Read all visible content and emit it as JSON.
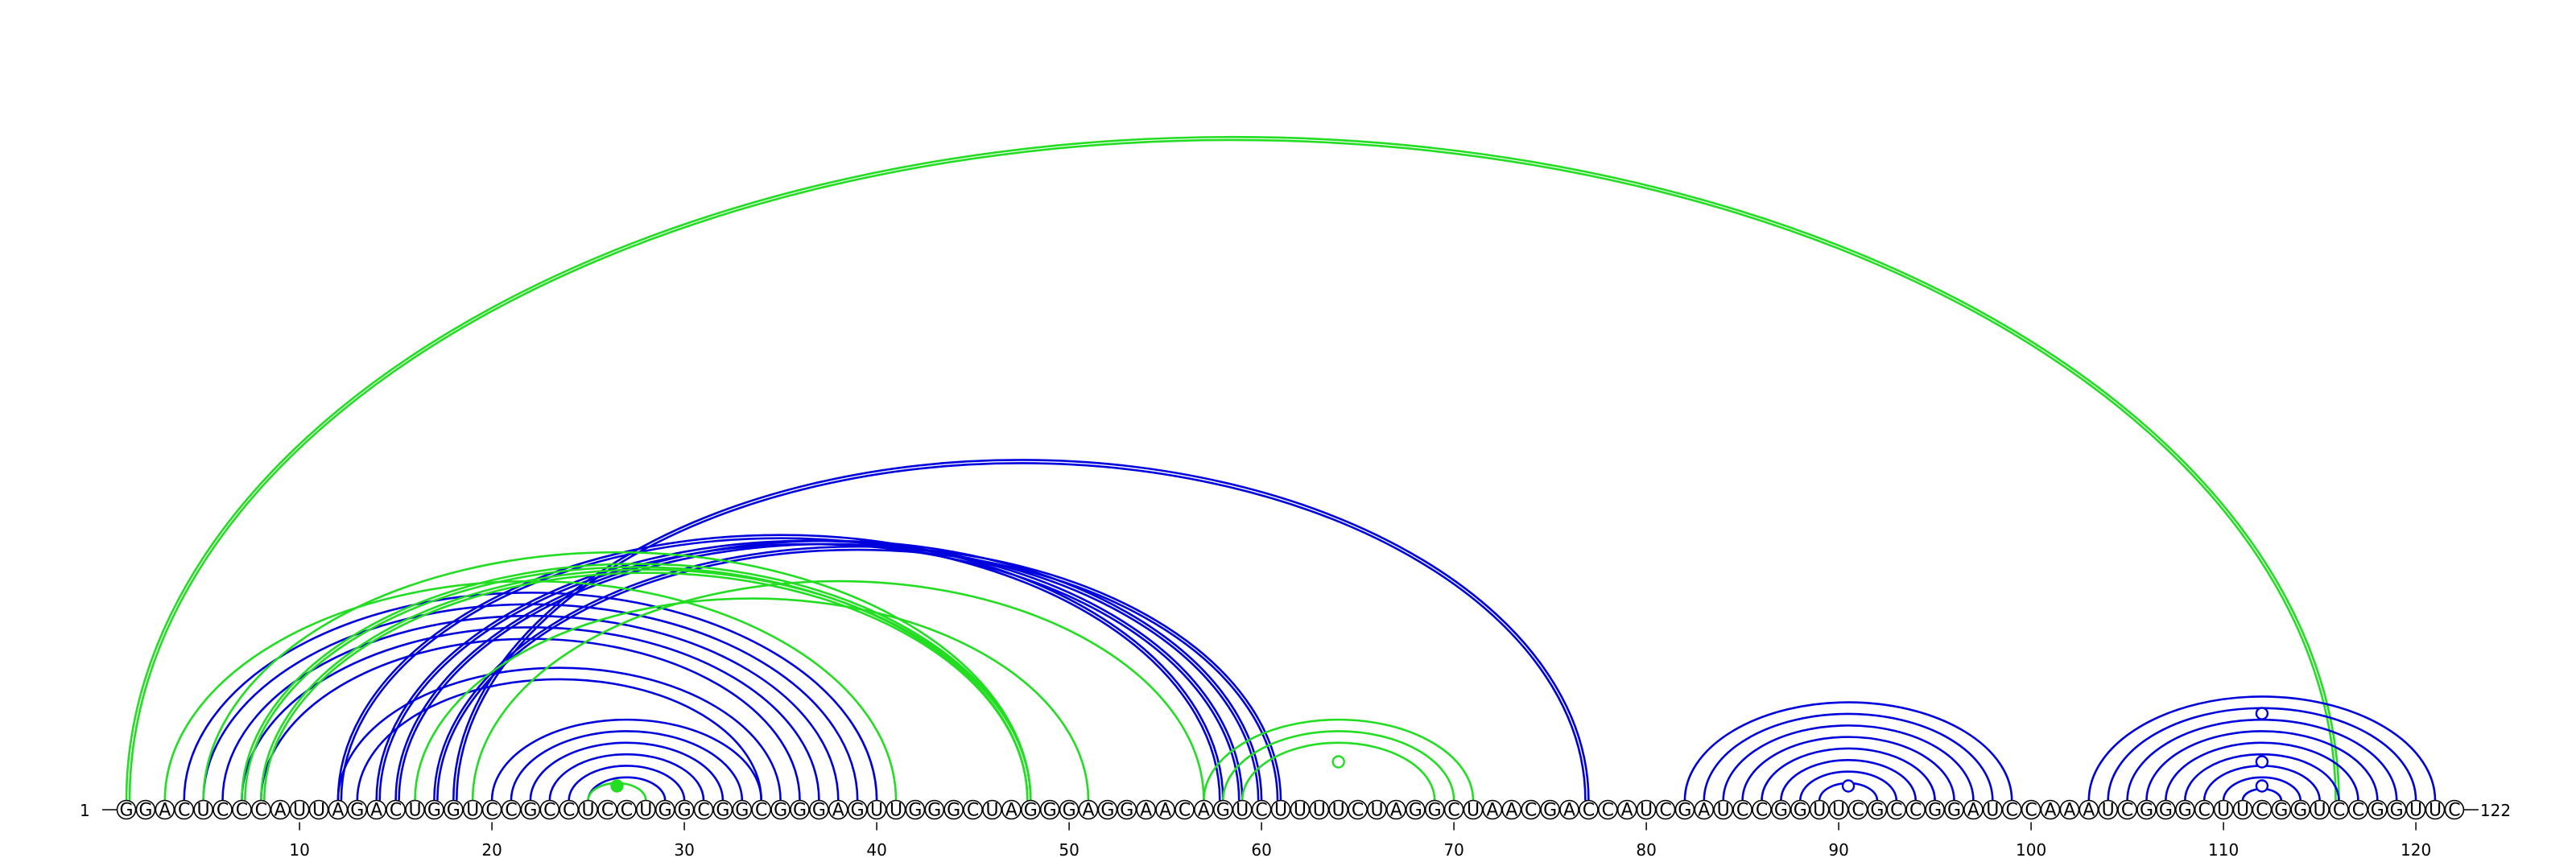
{
  "sequence": "GGACUCCCAUUAGACUGGUCCGCCUCCUGGCGGCGGGAGUUGGGCUAGGGAGGAACAGUCUUUUCUAGGCUAACGACCAUCGAUCCGGUUCGCCGGAUCCAAAUCGGGCUUCGGUCCGGUUC",
  "start_label": "1",
  "end_label": "122",
  "ticks": [
    {
      "pos": 10,
      "label": "10"
    },
    {
      "pos": 20,
      "label": "20"
    },
    {
      "pos": 30,
      "label": "30"
    },
    {
      "pos": 40,
      "label": "40"
    },
    {
      "pos": 50,
      "label": "50"
    },
    {
      "pos": 60,
      "label": "60"
    },
    {
      "pos": 70,
      "label": "70"
    },
    {
      "pos": 80,
      "label": "80"
    },
    {
      "pos": 90,
      "label": "90"
    },
    {
      "pos": 100,
      "label": "100"
    },
    {
      "pos": 110,
      "label": "110"
    },
    {
      "pos": 120,
      "label": "120"
    }
  ],
  "colors": {
    "blue": "#0000dd",
    "green": "#22dd22"
  },
  "arcs": [
    {
      "i": 1,
      "j": 116,
      "color": "green",
      "double": true
    },
    {
      "i": 4,
      "j": 40,
      "color": "blue"
    },
    {
      "i": 5,
      "j": 39,
      "color": "blue"
    },
    {
      "i": 6,
      "j": 38,
      "color": "blue"
    },
    {
      "i": 7,
      "j": 37,
      "color": "blue"
    },
    {
      "i": 8,
      "j": 36,
      "color": "blue"
    },
    {
      "i": 12,
      "j": 35,
      "color": "blue"
    },
    {
      "i": 13,
      "j": 34,
      "color": "blue"
    },
    {
      "i": 12,
      "j": 58,
      "color": "blue",
      "double": true
    },
    {
      "i": 14,
      "j": 59,
      "color": "blue",
      "double": true
    },
    {
      "i": 15,
      "j": 60,
      "color": "blue",
      "double": true
    },
    {
      "i": 17,
      "j": 61,
      "color": "blue",
      "double": true
    },
    {
      "i": 18,
      "j": 77,
      "color": "blue",
      "double": true
    },
    {
      "i": 20,
      "j": 34,
      "color": "blue"
    },
    {
      "i": 21,
      "j": 33,
      "color": "blue"
    },
    {
      "i": 22,
      "j": 32,
      "color": "blue"
    },
    {
      "i": 23,
      "j": 31,
      "color": "blue"
    },
    {
      "i": 24,
      "j": 30,
      "color": "blue"
    },
    {
      "i": 25,
      "j": 29,
      "color": "blue"
    },
    {
      "i": 3,
      "j": 41,
      "color": "green"
    },
    {
      "i": 5,
      "j": 48,
      "color": "green"
    },
    {
      "i": 7,
      "j": 48,
      "color": "green",
      "double": true
    },
    {
      "i": 8,
      "j": 48,
      "color": "green",
      "double": true
    },
    {
      "i": 16,
      "j": 51,
      "color": "green"
    },
    {
      "i": 19,
      "j": 57,
      "color": "green"
    },
    {
      "i": 25,
      "j": 28,
      "color": "green"
    },
    {
      "i": 57,
      "j": 71,
      "color": "green"
    },
    {
      "i": 58,
      "j": 70,
      "color": "green"
    },
    {
      "i": 59,
      "j": 69,
      "color": "green"
    },
    {
      "i": 82,
      "j": 99,
      "color": "blue"
    },
    {
      "i": 83,
      "j": 98,
      "color": "blue"
    },
    {
      "i": 84,
      "j": 97,
      "color": "blue"
    },
    {
      "i": 85,
      "j": 96,
      "color": "blue"
    },
    {
      "i": 86,
      "j": 95,
      "color": "blue"
    },
    {
      "i": 87,
      "j": 94,
      "color": "blue"
    },
    {
      "i": 88,
      "j": 93,
      "color": "blue"
    },
    {
      "i": 89,
      "j": 92,
      "color": "blue"
    },
    {
      "i": 103,
      "j": 121,
      "color": "blue"
    },
    {
      "i": 104,
      "j": 120,
      "color": "blue"
    },
    {
      "i": 105,
      "j": 119,
      "color": "blue"
    },
    {
      "i": 106,
      "j": 118,
      "color": "blue"
    },
    {
      "i": 107,
      "j": 117,
      "color": "blue"
    },
    {
      "i": 108,
      "j": 116,
      "color": "blue"
    },
    {
      "i": 109,
      "j": 115,
      "color": "blue"
    },
    {
      "i": 110,
      "j": 114,
      "color": "blue"
    },
    {
      "i": 111,
      "j": 113,
      "color": "blue"
    }
  ],
  "markers": [
    {
      "pos": 26.5,
      "height": 0,
      "style": "filled",
      "color": "green"
    },
    {
      "pos": 64,
      "height": 1,
      "style": "open",
      "color": "green"
    },
    {
      "pos": 90.5,
      "height": 0,
      "style": "open",
      "color": "blue"
    },
    {
      "pos": 112,
      "height": 0,
      "style": "open",
      "color": "blue"
    },
    {
      "pos": 112,
      "height": 1,
      "style": "open",
      "color": "blue"
    },
    {
      "pos": 112,
      "height": 3,
      "style": "open",
      "color": "blue"
    }
  ]
}
